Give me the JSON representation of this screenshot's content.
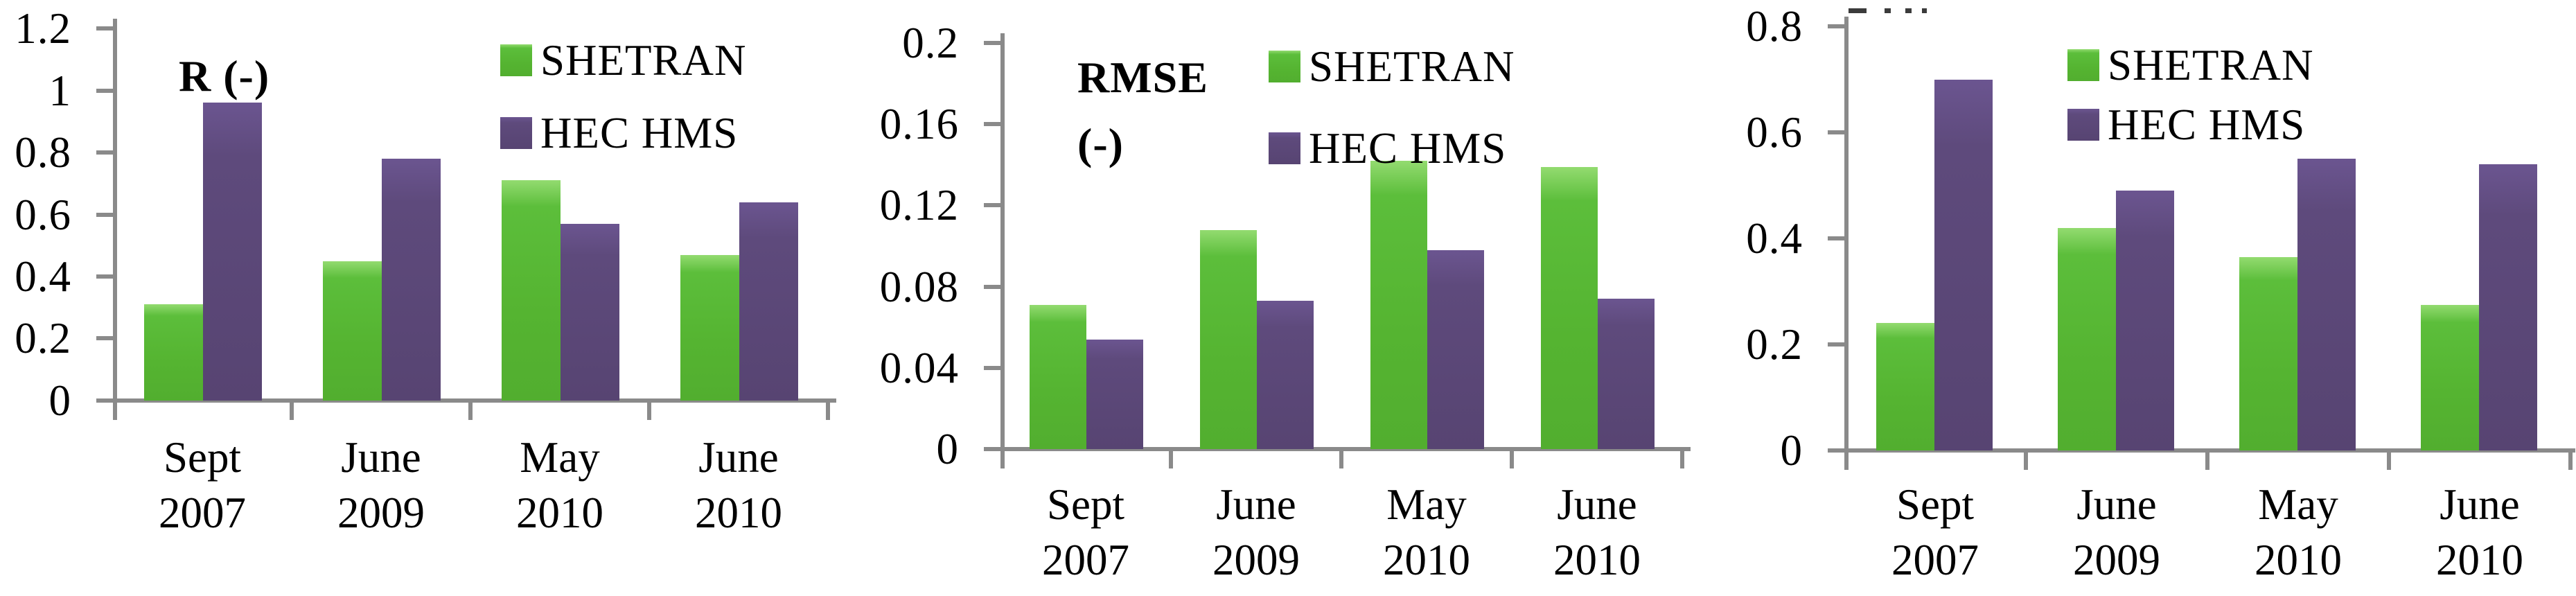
{
  "figure": {
    "description": "Three grouped bar charts comparing SHETRAN and HEC HMS model performance",
    "background": "#ffffff"
  },
  "colors": {
    "shetran": "#5CBE3B",
    "shetran_light": "#93DB70",
    "hec_hms": "#5E4A7C",
    "hec_hms_light": "#6B5590",
    "axis": "#8a8a8a",
    "text": "#000000"
  },
  "x_labels": [
    {
      "line1": "Sept",
      "line2": "2007"
    },
    {
      "line1": "June",
      "line2": "2009"
    },
    {
      "line1": "May",
      "line2": "2010"
    },
    {
      "line1": "June",
      "line2": "2010"
    }
  ],
  "chart_data": [
    {
      "type": "bar",
      "title": "R (-)",
      "title_lines": [
        "R (-)"
      ],
      "categories": [
        "Sept 2007",
        "June 2009",
        "May 2010",
        "June 2010"
      ],
      "series": [
        {
          "name": "SHETRAN",
          "values": [
            0.31,
            0.45,
            0.71,
            0.47
          ]
        },
        {
          "name": "HEC HMS",
          "values": [
            0.96,
            0.78,
            0.57,
            0.64
          ]
        }
      ],
      "ylim": [
        0,
        1.2
      ],
      "yticks": [
        "0",
        "0.2",
        "0.4",
        "0.6",
        "0.8",
        "1",
        "1.2"
      ],
      "ytick_values": [
        0,
        0.2,
        0.4,
        0.6,
        0.8,
        1,
        1.2
      ],
      "xlabel": "",
      "ylabel": "",
      "grid": false,
      "legend_position": "top-right"
    },
    {
      "type": "bar",
      "title": "RMSE (-)",
      "title_lines": [
        "RMSE",
        "(-)"
      ],
      "categories": [
        "Sept 2007",
        "June 2009",
        "May 2010",
        "June 2010"
      ],
      "series": [
        {
          "name": "SHETRAN",
          "values": [
            0.071,
            0.108,
            0.142,
            0.139
          ]
        },
        {
          "name": "HEC HMS",
          "values": [
            0.054,
            0.073,
            0.098,
            0.074
          ]
        }
      ],
      "ylim": [
        0,
        0.2
      ],
      "yticks": [
        "0",
        "0.04",
        "0.08",
        "0.12",
        "0.16",
        "0.2"
      ],
      "ytick_values": [
        0,
        0.04,
        0.08,
        0.12,
        0.16,
        0.2
      ],
      "xlabel": "",
      "ylabel": "",
      "grid": false,
      "legend_position": "top-right"
    },
    {
      "type": "bar",
      "title": "",
      "title_lines": [],
      "title_cropped_at_top": true,
      "categories": [
        "Sept 2007",
        "June 2009",
        "May 2010",
        "June 2010"
      ],
      "series": [
        {
          "name": "SHETRAN",
          "values": [
            0.24,
            0.42,
            0.365,
            0.275
          ]
        },
        {
          "name": "HEC HMS",
          "values": [
            0.7,
            0.49,
            0.55,
            0.54
          ]
        }
      ],
      "ylim": [
        0,
        0.8
      ],
      "yticks": [
        "0",
        "0.2",
        "0.4",
        "0.6",
        "0.8"
      ],
      "ytick_values": [
        0,
        0.2,
        0.4,
        0.6,
        0.8
      ],
      "xlabel": "",
      "ylabel": "",
      "grid": false,
      "legend_position": "top-right"
    }
  ]
}
